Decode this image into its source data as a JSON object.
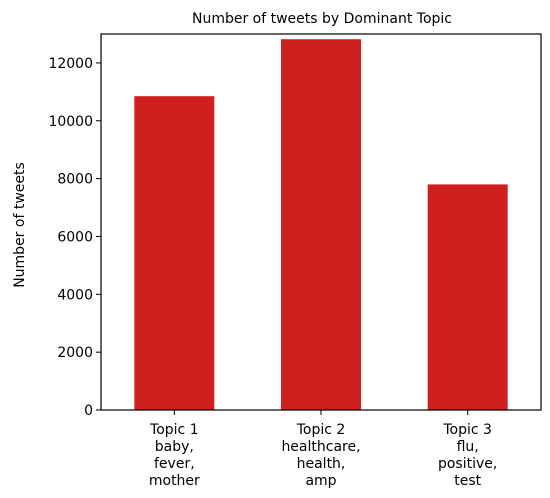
{
  "chart_data": {
    "type": "bar",
    "title": "Number of tweets by Dominant Topic",
    "xlabel": "",
    "ylabel": "Number of tweets",
    "categories": [
      [
        "Topic 1",
        "baby,",
        "fever,",
        "mother"
      ],
      [
        "Topic 2",
        "healthcare,",
        "health,",
        "amp"
      ],
      [
        "Topic 3",
        "flu,",
        "positive,",
        "test"
      ]
    ],
    "values": [
      10850,
      12820,
      7800
    ],
    "ylim": [
      0,
      13000
    ],
    "yticks": [
      0,
      2000,
      4000,
      6000,
      8000,
      10000,
      12000
    ],
    "bar_color": "#d01f1f",
    "grid": false
  }
}
